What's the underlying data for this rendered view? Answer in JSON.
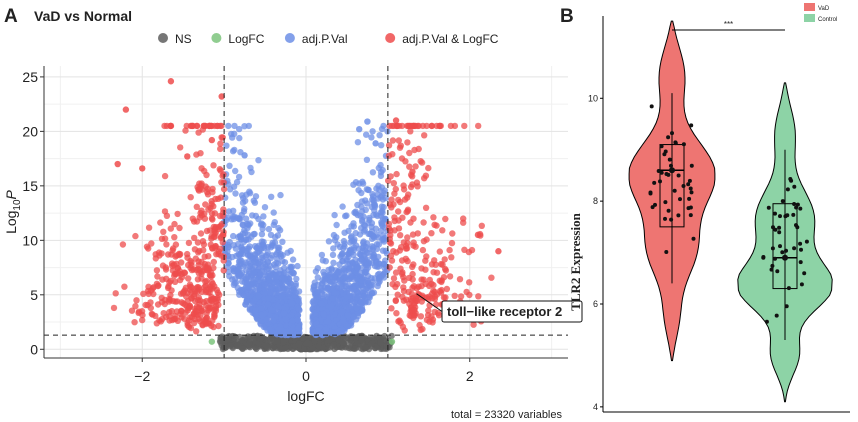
{
  "panel_a": {
    "label": "A",
    "chart_data": {
      "type": "scatter",
      "title": "VaD vs Normal",
      "xlabel": "logFC",
      "ylabel_main": "Log",
      "ylabel_sub": "10",
      "ylabel_var": "P",
      "xlim": [
        -3.2,
        3.2
      ],
      "ylim": [
        -0.8,
        26
      ],
      "x_ticks": [
        -2,
        0,
        2
      ],
      "x_tick_labels": [
        "−2",
        "0",
        "2"
      ],
      "y_ticks": [
        0,
        5,
        10,
        15,
        20,
        25
      ],
      "y_tick_labels": [
        "0",
        "5",
        "10",
        "15",
        "20",
        "25"
      ],
      "fc_cutoff": [
        -1,
        1
      ],
      "p_cutoff": 1.3,
      "legend": [
        {
          "name": "NS",
          "color": "#5e5e5e"
        },
        {
          "name": "LogFC",
          "color": "#7cc47c"
        },
        {
          "name": "adj.P.Val",
          "color": "#6d8fe6"
        },
        {
          "name": "adj.P.Val & LogFC",
          "color": "#ee4c4c"
        }
      ],
      "highlight_points": [
        {
          "x": -1.65,
          "y": 24.6,
          "group": "adj.P.Val & LogFC"
        },
        {
          "x": -2.2,
          "y": 22.0,
          "group": "adj.P.Val & LogFC"
        },
        {
          "x": -1.03,
          "y": 23.2,
          "group": "adj.P.Val & LogFC"
        },
        {
          "x": -2.0,
          "y": 16.6,
          "group": "adj.P.Val & LogFC"
        },
        {
          "x": -2.3,
          "y": 17.0,
          "group": "adj.P.Val & LogFC"
        },
        {
          "x": -1.45,
          "y": 17.7,
          "group": "adj.P.Val & LogFC"
        },
        {
          "x": -1.15,
          "y": 19.2,
          "group": "adj.P.Val & LogFC"
        },
        {
          "x": 1.1,
          "y": 21.0,
          "group": "adj.P.Val & LogFC"
        },
        {
          "x": 1.3,
          "y": 16.3,
          "group": "adj.P.Val & LogFC"
        },
        {
          "x": 2.35,
          "y": 9.0,
          "group": "adj.P.Val & LogFC"
        },
        {
          "x": 2.1,
          "y": 10.5,
          "group": "adj.P.Val & LogFC"
        },
        {
          "x": 0.75,
          "y": 20.9,
          "group": "adj.P.Val"
        },
        {
          "x": 0.65,
          "y": 20.2,
          "group": "adj.P.Val"
        },
        {
          "x": -0.75,
          "y": 17.8,
          "group": "adj.P.Val"
        },
        {
          "x": 0.85,
          "y": 18.9,
          "group": "adj.P.Val"
        },
        {
          "x": -1.15,
          "y": 0.7,
          "group": "LogFC"
        },
        {
          "x": 1.05,
          "y": 0.7,
          "group": "LogFC"
        }
      ],
      "annotation": {
        "text": "toll−like receptor 2",
        "x": 1.35,
        "y": 5.1
      },
      "caption": "total = 23320 variables"
    }
  },
  "panel_b": {
    "label": "B",
    "chart_data": {
      "type": "violin",
      "ylabel": "TLR2 Expression",
      "ylim": [
        3.9,
        11.6
      ],
      "y_ticks": [
        4,
        6,
        8,
        10
      ],
      "y_tick_labels": [
        "4",
        "6",
        "8",
        "10"
      ],
      "significance": "***",
      "groups": [
        {
          "name": "VaD",
          "color": "#ee7572",
          "min": 4.9,
          "max": 11.5,
          "q1": 7.5,
          "median": 8.6,
          "q3": 9.1,
          "whisker_low": 6.4,
          "whisker_high": 10.1,
          "mean": 8.6
        },
        {
          "name": "Control",
          "color": "#8dd3a6",
          "min": 4.1,
          "max": 10.3,
          "q1": 6.3,
          "median": 6.9,
          "q3": 7.95,
          "whisker_low": 5.3,
          "whisker_high": 9.0,
          "mean": 6.9
        }
      ],
      "legend": [
        {
          "name": "VaD",
          "color": "#ee7572"
        },
        {
          "name": "Control",
          "color": "#8dd3a6"
        }
      ]
    }
  }
}
